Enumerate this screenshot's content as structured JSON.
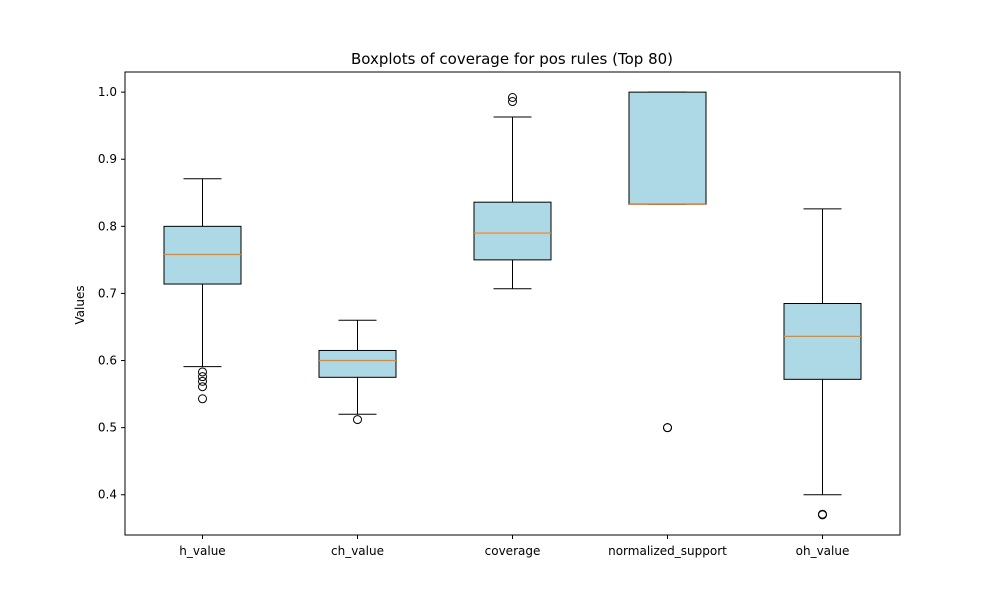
{
  "chart_data": {
    "type": "box",
    "title": "Boxplots of coverage for pos rules (Top 80)",
    "xlabel": "",
    "ylabel": "Values",
    "ylim": [
      0.34,
      1.03
    ],
    "yticks": [
      0.4,
      0.5,
      0.6,
      0.7,
      0.8,
      0.9,
      1.0
    ],
    "ytick_labels": [
      "0.4",
      "0.5",
      "0.6",
      "0.7",
      "0.8",
      "0.9",
      "1.0"
    ],
    "categories": [
      "h_value",
      "ch_value",
      "coverage",
      "normalized_support",
      "oh_value"
    ],
    "grid": false,
    "colors": {
      "box_fill": "#add8e6",
      "box_edge": "#000000",
      "median": "#ff7f0e"
    },
    "boxes": [
      {
        "label": "h_value",
        "whisker_low": 0.591,
        "q1": 0.714,
        "median": 0.758,
        "q3": 0.8,
        "whisker_high": 0.871,
        "outliers": [
          0.583,
          0.576,
          0.569,
          0.561,
          0.543
        ]
      },
      {
        "label": "ch_value",
        "whisker_low": 0.52,
        "q1": 0.575,
        "median": 0.6,
        "q3": 0.615,
        "whisker_high": 0.66,
        "outliers": [
          0.512
        ]
      },
      {
        "label": "coverage",
        "whisker_low": 0.707,
        "q1": 0.75,
        "median": 0.79,
        "q3": 0.836,
        "whisker_high": 0.963,
        "outliers": [
          0.992,
          0.986
        ]
      },
      {
        "label": "normalized_support",
        "whisker_low": 0.833,
        "q1": 0.833,
        "median": 0.833,
        "q3": 1.0,
        "whisker_high": 1.0,
        "outliers": [
          0.5,
          0.5
        ]
      },
      {
        "label": "oh_value",
        "whisker_low": 0.4,
        "q1": 0.572,
        "median": 0.636,
        "q3": 0.685,
        "whisker_high": 0.826,
        "outliers": [
          0.371,
          0.37
        ]
      }
    ]
  }
}
